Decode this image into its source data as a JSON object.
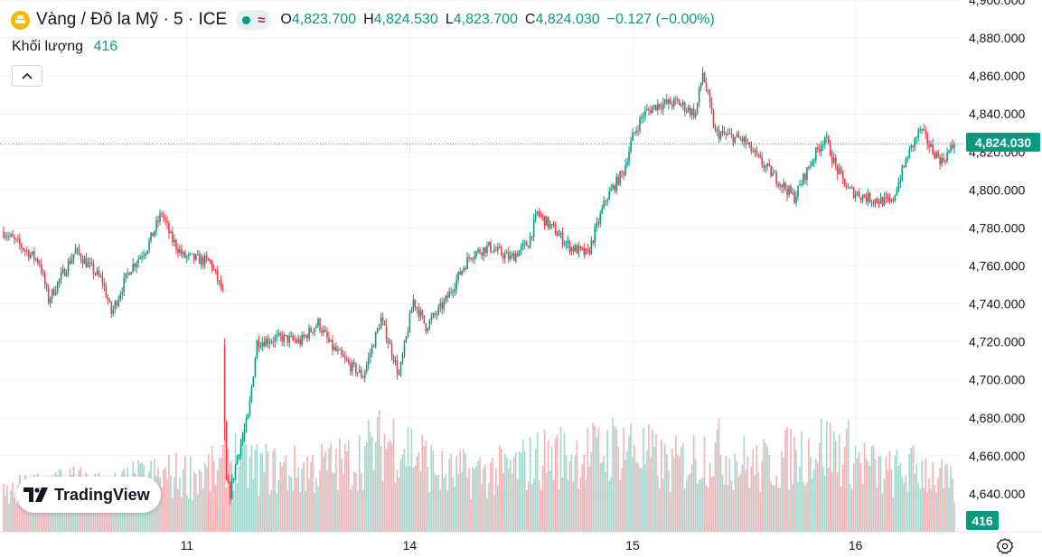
{
  "legend": {
    "symbol": "Vàng / Đô la Mỹ · 5 · ICE",
    "open_label": "O",
    "open": "4,823.700",
    "high_label": "H",
    "high": "4,824.530",
    "low_label": "L",
    "low": "4,823.700",
    "close_label": "C",
    "close": "4,824.030",
    "change": "−0.127 (−0.00%)"
  },
  "volume_legend": {
    "label": "Khối lượng",
    "value": "416"
  },
  "logo_text": "TradingView",
  "last_price_label": "4,824.030",
  "last_volume_label": "416",
  "colors": {
    "up": "#089981",
    "down": "#f23645",
    "up_volume": "#a7d9d1",
    "down_volume": "#f5b4b8"
  },
  "chart_data": {
    "type": "candlestick",
    "title": "Vàng / Đô la Mỹ · 5 · ICE",
    "ylim": [
      4620,
      4900
    ],
    "y_ticks": [
      4640,
      4660,
      4680,
      4700,
      4720,
      4740,
      4760,
      4780,
      4800,
      4820,
      4840,
      4860,
      4880,
      4900
    ],
    "y_tick_labels": [
      "4,640.000",
      "4,660.000",
      "4,680.000",
      "4,700.000",
      "4,720.000",
      "4,740.000",
      "4,760.000",
      "4,780.000",
      "4,800.000",
      "4,820.000",
      "4,840.000",
      "4,860.000",
      "4,880.000",
      "4,900.000"
    ],
    "x_tick_labels": [
      "11",
      "14",
      "15",
      "16"
    ],
    "x_tick_bar_index": [
      102,
      226,
      350,
      474
    ],
    "bar_count": 530,
    "session_break_index": 123,
    "last_price": 4824.03,
    "last_volume": 416,
    "price_path": [
      [
        0,
        4778
      ],
      [
        20,
        4762
      ],
      [
        25,
        4742
      ],
      [
        40,
        4768
      ],
      [
        55,
        4752
      ],
      [
        60,
        4735
      ],
      [
        70,
        4758
      ],
      [
        80,
        4770
      ],
      [
        88,
        4788
      ],
      [
        93,
        4775
      ],
      [
        100,
        4765
      ],
      [
        115,
        4762
      ],
      [
        122,
        4746
      ],
      [
        123,
        4720
      ],
      [
        124,
        4646
      ],
      [
        126,
        4640
      ],
      [
        130,
        4660
      ],
      [
        136,
        4680
      ],
      [
        141,
        4720
      ],
      [
        155,
        4722
      ],
      [
        165,
        4720
      ],
      [
        175,
        4730
      ],
      [
        182,
        4718
      ],
      [
        192,
        4708
      ],
      [
        200,
        4702
      ],
      [
        210,
        4732
      ],
      [
        217,
        4712
      ],
      [
        220,
        4702
      ],
      [
        228,
        4742
      ],
      [
        235,
        4728
      ],
      [
        245,
        4740
      ],
      [
        255,
        4758
      ],
      [
        260,
        4766
      ],
      [
        270,
        4770
      ],
      [
        282,
        4764
      ],
      [
        292,
        4772
      ],
      [
        297,
        4788
      ],
      [
        307,
        4778
      ],
      [
        315,
        4770
      ],
      [
        325,
        4766
      ],
      [
        335,
        4795
      ],
      [
        345,
        4810
      ],
      [
        350,
        4828
      ],
      [
        356,
        4840
      ],
      [
        364,
        4845
      ],
      [
        375,
        4846
      ],
      [
        385,
        4840
      ],
      [
        389,
        4862
      ],
      [
        396,
        4830
      ],
      [
        405,
        4828
      ],
      [
        412,
        4826
      ],
      [
        420,
        4816
      ],
      [
        432,
        4804
      ],
      [
        440,
        4796
      ],
      [
        450,
        4816
      ],
      [
        457,
        4828
      ],
      [
        463,
        4812
      ],
      [
        470,
        4800
      ],
      [
        480,
        4796
      ],
      [
        494,
        4793
      ],
      [
        503,
        4818
      ],
      [
        510,
        4832
      ],
      [
        516,
        4822
      ],
      [
        522,
        4815
      ],
      [
        529,
        4824.03
      ]
    ],
    "volume_ylim": [
      0,
      1600
    ],
    "volume_range": [
      300,
      1200
    ],
    "volume_profile": [
      [
        0,
        500
      ],
      [
        30,
        700
      ],
      [
        60,
        600
      ],
      [
        80,
        750
      ],
      [
        100,
        800
      ],
      [
        122,
        850
      ],
      [
        123,
        1100
      ],
      [
        140,
        900
      ],
      [
        160,
        850
      ],
      [
        190,
        950
      ],
      [
        215,
        1300
      ],
      [
        225,
        1200
      ],
      [
        245,
        800
      ],
      [
        280,
        850
      ],
      [
        300,
        1050
      ],
      [
        330,
        1100
      ],
      [
        345,
        1250
      ],
      [
        370,
        900
      ],
      [
        395,
        1150
      ],
      [
        420,
        900
      ],
      [
        455,
        1200
      ],
      [
        470,
        1100
      ],
      [
        490,
        800
      ],
      [
        512,
        900
      ],
      [
        529,
        600
      ]
    ]
  }
}
